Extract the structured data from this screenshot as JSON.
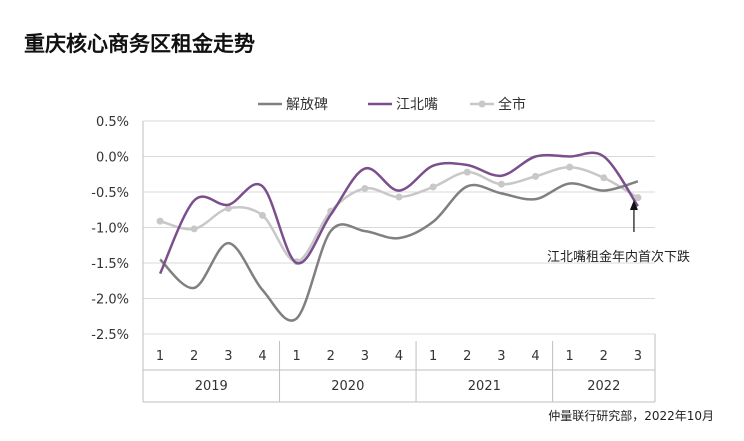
{
  "title": "重庆核心商务区租金走势",
  "source": "仲量联行研究部，2022年10月",
  "annotation": "江北嘴租金年内首次下跌",
  "chart_data": {
    "type": "line",
    "title": "重庆核心商务区租金走势",
    "categories": [
      "1",
      "2",
      "3",
      "4",
      "1",
      "2",
      "3",
      "4",
      "1",
      "2",
      "3",
      "4",
      "1",
      "2",
      "3"
    ],
    "groups": [
      {
        "label": "2019",
        "count": 4
      },
      {
        "label": "2020",
        "count": 4
      },
      {
        "label": "2021",
        "count": 4
      },
      {
        "label": "2022",
        "count": 3
      }
    ],
    "series": [
      {
        "name": "解放碑",
        "color": "#808080",
        "marker": false,
        "values": [
          -1.45,
          -1.85,
          -1.22,
          -1.88,
          -2.28,
          -1.05,
          -1.05,
          -1.15,
          -0.92,
          -0.42,
          -0.52,
          -0.6,
          -0.38,
          -0.48,
          -0.35
        ]
      },
      {
        "name": "江北嘴",
        "color": "#7b4f8c",
        "marker": false,
        "values": [
          -1.65,
          -0.62,
          -0.68,
          -0.42,
          -1.5,
          -0.82,
          -0.17,
          -0.48,
          -0.13,
          -0.12,
          -0.27,
          0.0,
          0.0,
          0.0,
          -0.7
        ]
      },
      {
        "name": "全市",
        "color": "#c8c8c8",
        "marker": true,
        "values": [
          -0.91,
          -1.02,
          -0.73,
          -0.83,
          -1.48,
          -0.77,
          -0.45,
          -0.57,
          -0.43,
          -0.22,
          -0.39,
          -0.28,
          -0.15,
          -0.3,
          -0.58
        ]
      }
    ],
    "yticks": [
      "0.5%",
      "0.0%",
      "-0.5%",
      "-1.0%",
      "-1.5%",
      "-2.0%",
      "-2.5%"
    ],
    "ylim": [
      -2.5,
      0.5
    ],
    "grid": true,
    "legend": "top"
  }
}
